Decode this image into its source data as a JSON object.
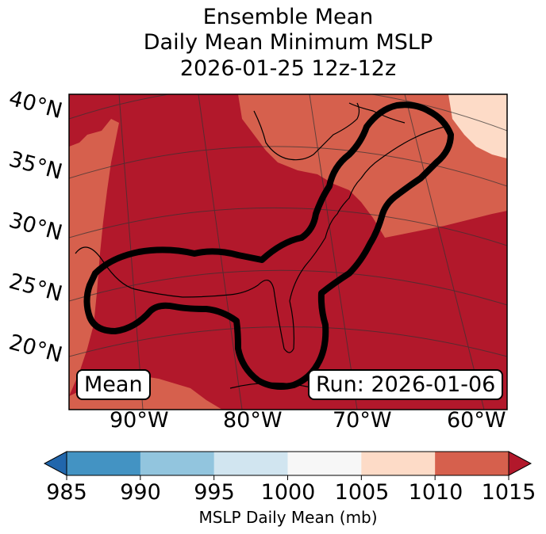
{
  "title": {
    "line1": "Ensemble Mean",
    "line2": "Daily Mean Minimum MSLP",
    "line3": "2026-01-25 12z-12z"
  },
  "map": {
    "lat_labels": [
      "40°N",
      "35°N",
      "30°N",
      "25°N",
      "20°N"
    ],
    "lon_labels": [
      "90°W",
      "80°W",
      "70°W",
      "60°W"
    ],
    "mean_label": "Mean",
    "run_label": "Run: 2026-01-06",
    "colors": {
      "below_1010": "#b2182b",
      "1010_1015": "#d6604d",
      "1005_1010": "#fddbc7",
      "contour": "#000000"
    }
  },
  "colorbar": {
    "ticks": [
      "985",
      "990",
      "995",
      "1000",
      "1005",
      "1010",
      "1015"
    ],
    "label": "MSLP Daily Mean (mb)",
    "colors": [
      "#4393c3",
      "#92c5de",
      "#d1e5f0",
      "#f7f7f7",
      "#fddbc7",
      "#d6604d"
    ],
    "under_color": "#2166ac",
    "over_color": "#b2182b"
  }
}
